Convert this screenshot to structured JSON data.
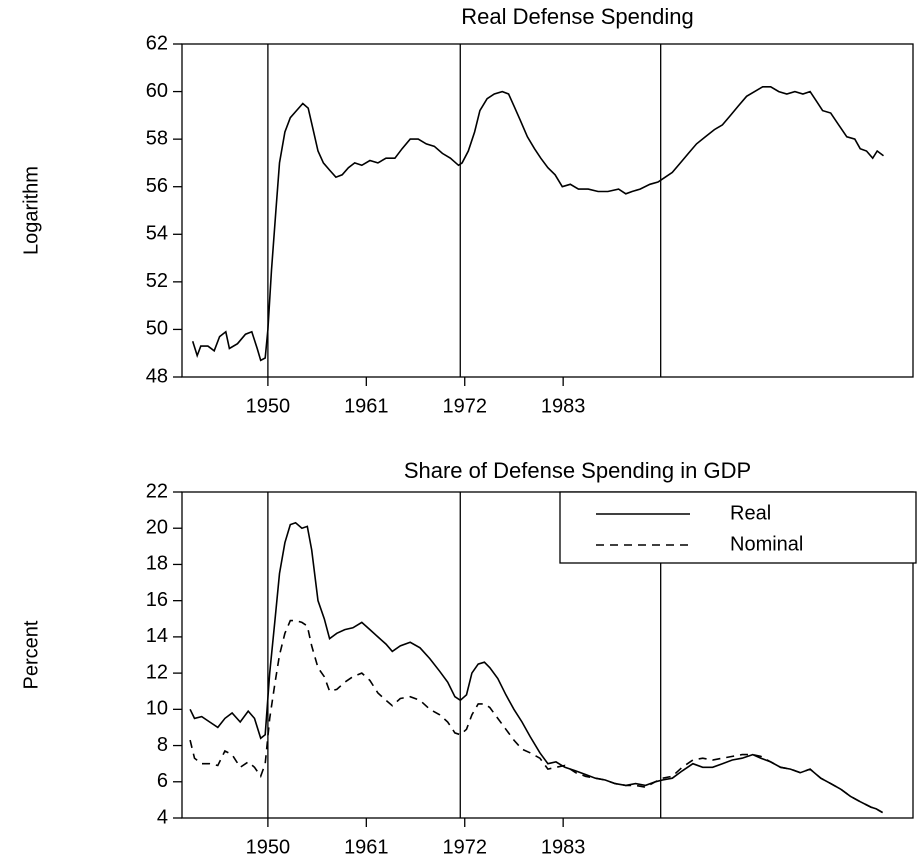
{
  "chart_data": [
    {
      "type": "line",
      "title": "Real Defense Spending",
      "ylabel": "Logarithm",
      "x": [
        1941.6,
        1942.1,
        1942.5,
        1943.3,
        1944.0,
        1944.6,
        1945.3,
        1945.7,
        1946.6,
        1947.5,
        1948.2,
        1948.8,
        1949.2,
        1949.7,
        1950.0,
        1950.4,
        1950.9,
        1951.3,
        1951.9,
        1952.5,
        1953.2,
        1953.9,
        1954.5,
        1955.0,
        1955.6,
        1956.2,
        1956.9,
        1957.6,
        1958.3,
        1959.0,
        1959.7,
        1960.5,
        1961.4,
        1962.3,
        1963.2,
        1964.2,
        1965.0,
        1965.9,
        1966.8,
        1967.7,
        1968.6,
        1969.5,
        1970.4,
        1971.3,
        1971.7,
        1972.4,
        1973.1,
        1973.7,
        1974.5,
        1975.3,
        1976.2,
        1976.9,
        1977.5,
        1978.2,
        1979.0,
        1979.8,
        1980.5,
        1981.3,
        1982.1,
        1982.9,
        1983.8,
        1984.7,
        1985.8,
        1986.9,
        1988.0,
        1989.2,
        1990.0,
        1990.7,
        1991.6,
        1992.7,
        1993.6,
        1994.4,
        1995.2,
        1996.1,
        1997.0,
        1997.9,
        1998.9,
        1999.9,
        2000.8,
        2001.7,
        2002.6,
        2003.5,
        2004.4,
        2005.3,
        2006.2,
        2007.1,
        2008.0,
        2008.9,
        2009.8,
        2010.6,
        2011.3,
        2012.0,
        2012.9,
        2013.8,
        2014.7,
        2015.6,
        2016.2,
        2016.9,
        2017.6,
        2018.1,
        2018.8
      ],
      "series": [
        {
          "color": "#000000",
          "linestyle": "solid",
          "values": [
            49.5,
            48.9,
            49.3,
            49.3,
            49.1,
            49.7,
            49.9,
            49.2,
            49.4,
            49.8,
            49.9,
            49.2,
            48.7,
            48.8,
            50.0,
            52.5,
            55.0,
            57.0,
            58.3,
            58.9,
            59.2,
            59.5,
            59.3,
            58.5,
            57.5,
            57.0,
            56.7,
            56.4,
            56.5,
            56.8,
            57.0,
            56.9,
            57.1,
            57.0,
            57.2,
            57.2,
            57.6,
            58.0,
            58.0,
            57.8,
            57.7,
            57.4,
            57.2,
            56.9,
            57.0,
            57.5,
            58.3,
            59.2,
            59.7,
            59.9,
            60.0,
            59.9,
            59.4,
            58.8,
            58.1,
            57.6,
            57.2,
            56.8,
            56.5,
            56.0,
            56.1,
            55.9,
            55.9,
            55.8,
            55.8,
            55.9,
            55.7,
            55.8,
            55.9,
            56.1,
            56.2,
            56.4,
            56.6,
            57.0,
            57.4,
            57.8,
            58.1,
            58.4,
            58.6,
            59.0,
            59.4,
            59.8,
            60.0,
            60.2,
            60.2,
            60.0,
            59.9,
            60.0,
            59.9,
            60.0,
            59.6,
            59.2,
            59.1,
            58.6,
            58.1,
            58.0,
            57.6,
            57.5,
            57.2,
            57.5,
            57.3
          ]
        }
      ],
      "xlim": [
        1940.4,
        2022.1
      ],
      "xticks": [
        1950,
        1961,
        1972,
        1983
      ],
      "ylim": [
        48,
        62
      ],
      "yticks": [
        48,
        50,
        52,
        54,
        56,
        58,
        60,
        62
      ],
      "vlines": [
        1950.0,
        1971.5,
        1993.9
      ]
    },
    {
      "type": "line",
      "title": "Share of Defense Spending in GDP",
      "ylabel": "Percent",
      "x": [
        1941.3,
        1941.8,
        1942.6,
        1943.5,
        1944.4,
        1945.2,
        1946.0,
        1946.9,
        1947.8,
        1948.5,
        1949.2,
        1949.7,
        1950.2,
        1950.8,
        1951.3,
        1951.9,
        1952.5,
        1953.1,
        1953.8,
        1954.4,
        1954.9,
        1955.6,
        1956.3,
        1956.9,
        1957.7,
        1958.6,
        1959.5,
        1960.5,
        1961.4,
        1962.3,
        1963.2,
        1963.9,
        1964.8,
        1965.9,
        1967.0,
        1968.1,
        1969.2,
        1970.1,
        1970.9,
        1971.5,
        1972.2,
        1972.8,
        1973.5,
        1974.2,
        1974.8,
        1975.7,
        1976.6,
        1977.5,
        1978.4,
        1979.3,
        1980.4,
        1981.3,
        1982.2,
        1983.2,
        1984.4,
        1985.5,
        1986.6,
        1987.7,
        1988.8,
        1990.0,
        1991.1,
        1992.2,
        1993.3,
        1994.1,
        1995.2,
        1996.3,
        1997.5,
        1998.6,
        1999.7,
        2000.8,
        2001.9,
        2003.0,
        2004.2,
        2005.1,
        2006.2,
        2007.3,
        2008.4,
        2009.5,
        2010.6,
        2011.8,
        2012.9,
        2014.0,
        2015.1,
        2016.2,
        2017.4,
        2018.0,
        2018.7
      ],
      "series": [
        {
          "name": "Real",
          "color": "#000000",
          "linestyle": "solid",
          "values": [
            10.0,
            9.5,
            9.6,
            9.3,
            9.0,
            9.5,
            9.8,
            9.3,
            9.9,
            9.5,
            8.4,
            8.6,
            12.0,
            15.0,
            17.5,
            19.2,
            20.2,
            20.3,
            20.0,
            20.1,
            18.8,
            16.0,
            15.0,
            13.9,
            14.2,
            14.4,
            14.5,
            14.8,
            14.4,
            14.0,
            13.6,
            13.2,
            13.5,
            13.7,
            13.4,
            12.8,
            12.1,
            11.5,
            10.7,
            10.5,
            10.8,
            12.0,
            12.5,
            12.6,
            12.3,
            11.7,
            10.8,
            10.0,
            9.3,
            8.5,
            7.6,
            7.0,
            7.1,
            6.8,
            6.6,
            6.4,
            6.2,
            6.1,
            5.9,
            5.8,
            5.9,
            5.8,
            6.0,
            6.1,
            6.2,
            6.6,
            7.0,
            6.8,
            6.8,
            7.0,
            7.2,
            7.3,
            7.5,
            7.3,
            7.1,
            6.8,
            6.7,
            6.5,
            6.7,
            6.2,
            5.9,
            5.6,
            5.2,
            4.9,
            4.6,
            4.5,
            4.3
          ]
        },
        {
          "name": "Nominal",
          "color": "#000000",
          "linestyle": "dashed",
          "values": [
            8.3,
            7.3,
            7.0,
            7.0,
            6.9,
            7.7,
            7.5,
            6.8,
            7.1,
            6.8,
            6.3,
            7.0,
            9.5,
            11.5,
            13.0,
            14.2,
            14.9,
            14.9,
            14.8,
            14.6,
            13.5,
            12.3,
            11.8,
            11.0,
            11.1,
            11.5,
            11.8,
            12.0,
            11.6,
            10.9,
            10.5,
            10.2,
            10.6,
            10.7,
            10.5,
            10.0,
            9.7,
            9.3,
            8.7,
            8.6,
            8.9,
            9.7,
            10.3,
            10.3,
            10.1,
            9.5,
            8.9,
            8.3,
            7.8,
            7.6,
            7.3,
            6.7,
            6.8,
            6.9,
            6.5,
            6.3,
            6.2,
            6.1,
            5.9,
            5.8,
            5.8,
            5.7,
            6.0,
            6.2,
            6.3,
            6.8,
            7.2,
            7.3,
            7.2,
            7.3,
            7.4,
            7.5,
            7.5,
            7.4,
            7.1,
            6.8,
            6.7,
            6.5,
            6.7,
            6.2,
            5.9,
            5.6,
            5.2,
            4.9,
            4.6,
            4.5,
            4.3
          ]
        }
      ],
      "xlim": [
        1940.4,
        2022.1
      ],
      "xticks": [
        1950,
        1961,
        1972,
        1983
      ],
      "ylim": [
        4,
        22
      ],
      "yticks": [
        4,
        6,
        8,
        10,
        12,
        14,
        16,
        18,
        20,
        22
      ],
      "vlines": [
        1950.0,
        1971.5,
        1993.9
      ],
      "legend": "upper right"
    }
  ]
}
